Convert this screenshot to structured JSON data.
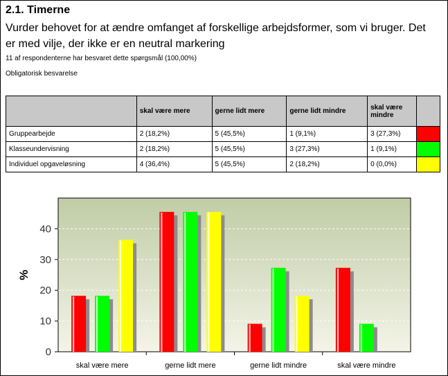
{
  "question": {
    "title": "2.1. Timerne",
    "text": "Vurder behovet for at ændre omfanget af forskellige arbejdsformer, som vi bruger. Det er med vilje, der ikke er en neutral markering",
    "respondents": "11 af respondenterne har besvaret dette spørgsmål (100,00%)",
    "mandatory": "Obligatorisk besvarelse"
  },
  "table": {
    "headers": [
      "",
      "skal være mere",
      "gerne lidt mere",
      "gerne lidt mindre",
      "skal være mindre",
      ""
    ],
    "rows": [
      {
        "label": "Gruppearbejde",
        "cells": [
          "2 (18,2%)",
          "5 (45,5%)",
          "1 (9,1%)",
          "3 (27,3%)"
        ],
        "color": "#ff0000"
      },
      {
        "label": "Klasseundervisning",
        "cells": [
          "2 (18,2%)",
          "5 (45,5%)",
          "3 (27,3%)",
          "1 (9,1%)"
        ],
        "color": "#00ff00"
      },
      {
        "label": "Individuel opgaveløsning",
        "cells": [
          "4 (36,4%)",
          "5 (45,5%)",
          "2 (18,2%)",
          "0 (0,0%)"
        ],
        "color": "#ffff00"
      }
    ]
  },
  "chart_data": {
    "type": "bar",
    "title": "",
    "xlabel": "",
    "ylabel": "%",
    "ylim": [
      0,
      50
    ],
    "yticks": [
      0,
      10,
      20,
      30,
      40
    ],
    "grid": true,
    "legend": "none",
    "categories": [
      "skal være mere",
      "gerne lidt mere",
      "gerne lidt mindre",
      "skal være mindre"
    ],
    "series": [
      {
        "values": [
          18.2,
          45.5,
          9.1,
          27.3
        ],
        "color": "#ff0000"
      },
      {
        "values": [
          18.2,
          45.5,
          27.3,
          9.1
        ],
        "color": "#00ff00"
      },
      {
        "values": [
          36.4,
          45.5,
          18.2,
          0.0
        ],
        "color": "#ffff00"
      }
    ]
  }
}
